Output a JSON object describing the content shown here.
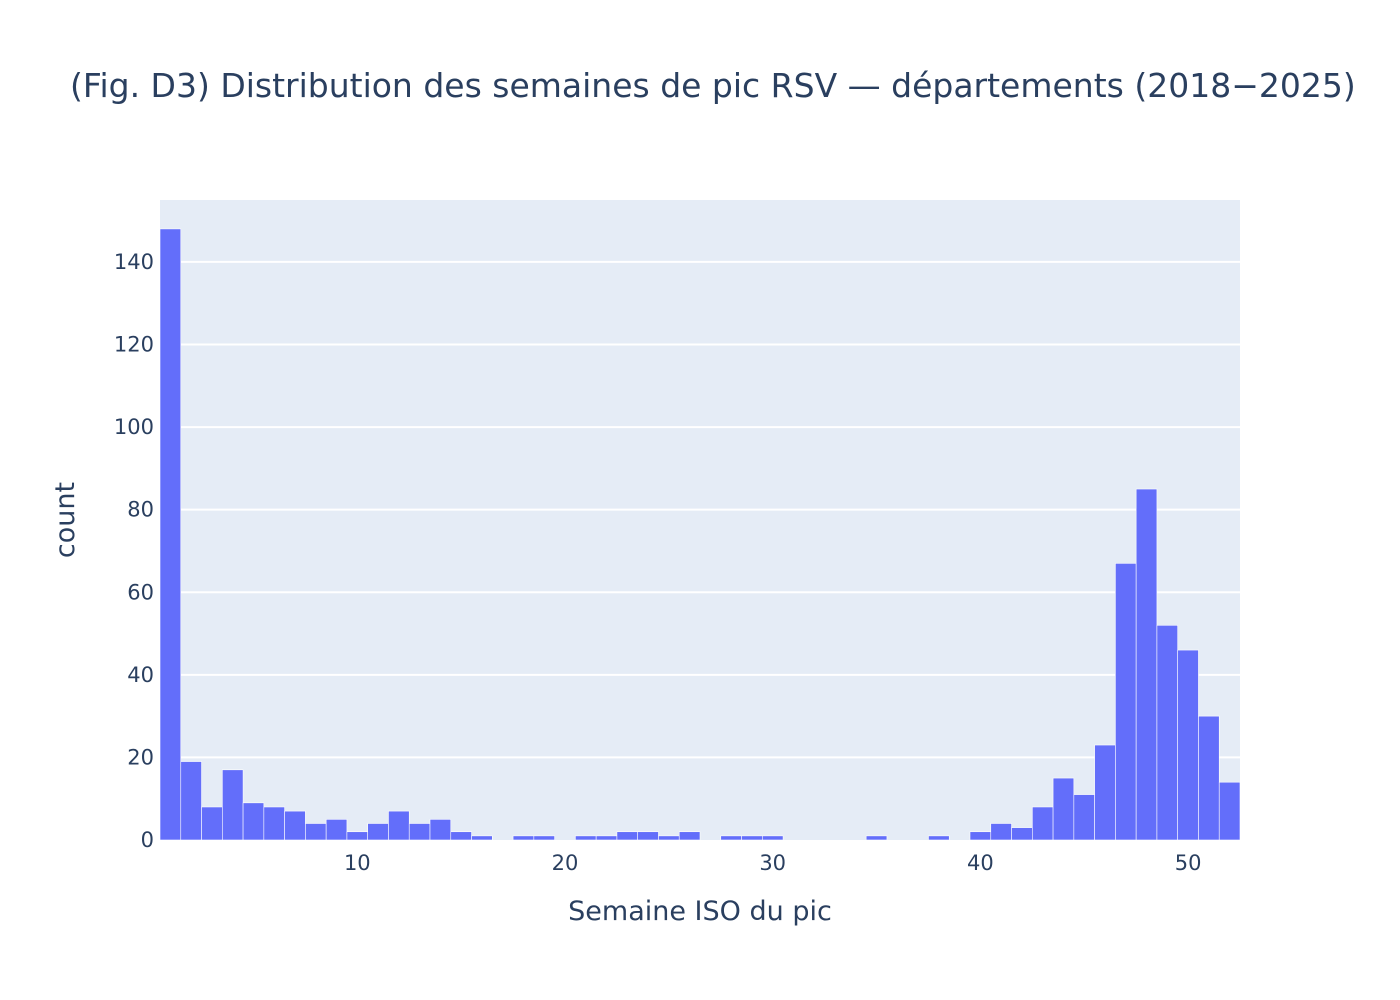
{
  "chart_data": {
    "type": "bar",
    "title": "(Fig. D3) Distribution des semaines de pic RSV — départements (2018−2025)",
    "xlabel": "Semaine ISO du pic",
    "ylabel": "count",
    "x": [
      1,
      2,
      3,
      4,
      5,
      6,
      7,
      8,
      9,
      10,
      11,
      12,
      13,
      14,
      15,
      16,
      17,
      18,
      19,
      20,
      21,
      22,
      23,
      24,
      25,
      26,
      27,
      28,
      29,
      30,
      31,
      32,
      33,
      34,
      35,
      36,
      37,
      38,
      39,
      40,
      41,
      42,
      43,
      44,
      45,
      46,
      47,
      48,
      49,
      50,
      51,
      52
    ],
    "values": [
      148,
      19,
      8,
      17,
      9,
      8,
      7,
      4,
      5,
      2,
      4,
      7,
      4,
      5,
      2,
      1,
      0,
      1,
      1,
      0,
      1,
      1,
      2,
      2,
      1,
      2,
      0,
      1,
      1,
      1,
      0,
      0,
      0,
      0,
      1,
      0,
      0,
      1,
      0,
      2,
      4,
      3,
      8,
      15,
      11,
      23,
      67,
      85,
      52,
      46,
      30,
      14
    ],
    "xlim": [
      0.5,
      52.5
    ],
    "ylim": [
      0,
      155
    ],
    "xticks": [
      10,
      20,
      30,
      40,
      50
    ],
    "yticks": [
      0,
      20,
      40,
      60,
      80,
      100,
      120,
      140
    ],
    "grid": true,
    "colors": {
      "bar": "#636efa",
      "plot_bg": "#e5ecf6",
      "grid": "#ffffff",
      "text": "#2a3f5f"
    }
  }
}
